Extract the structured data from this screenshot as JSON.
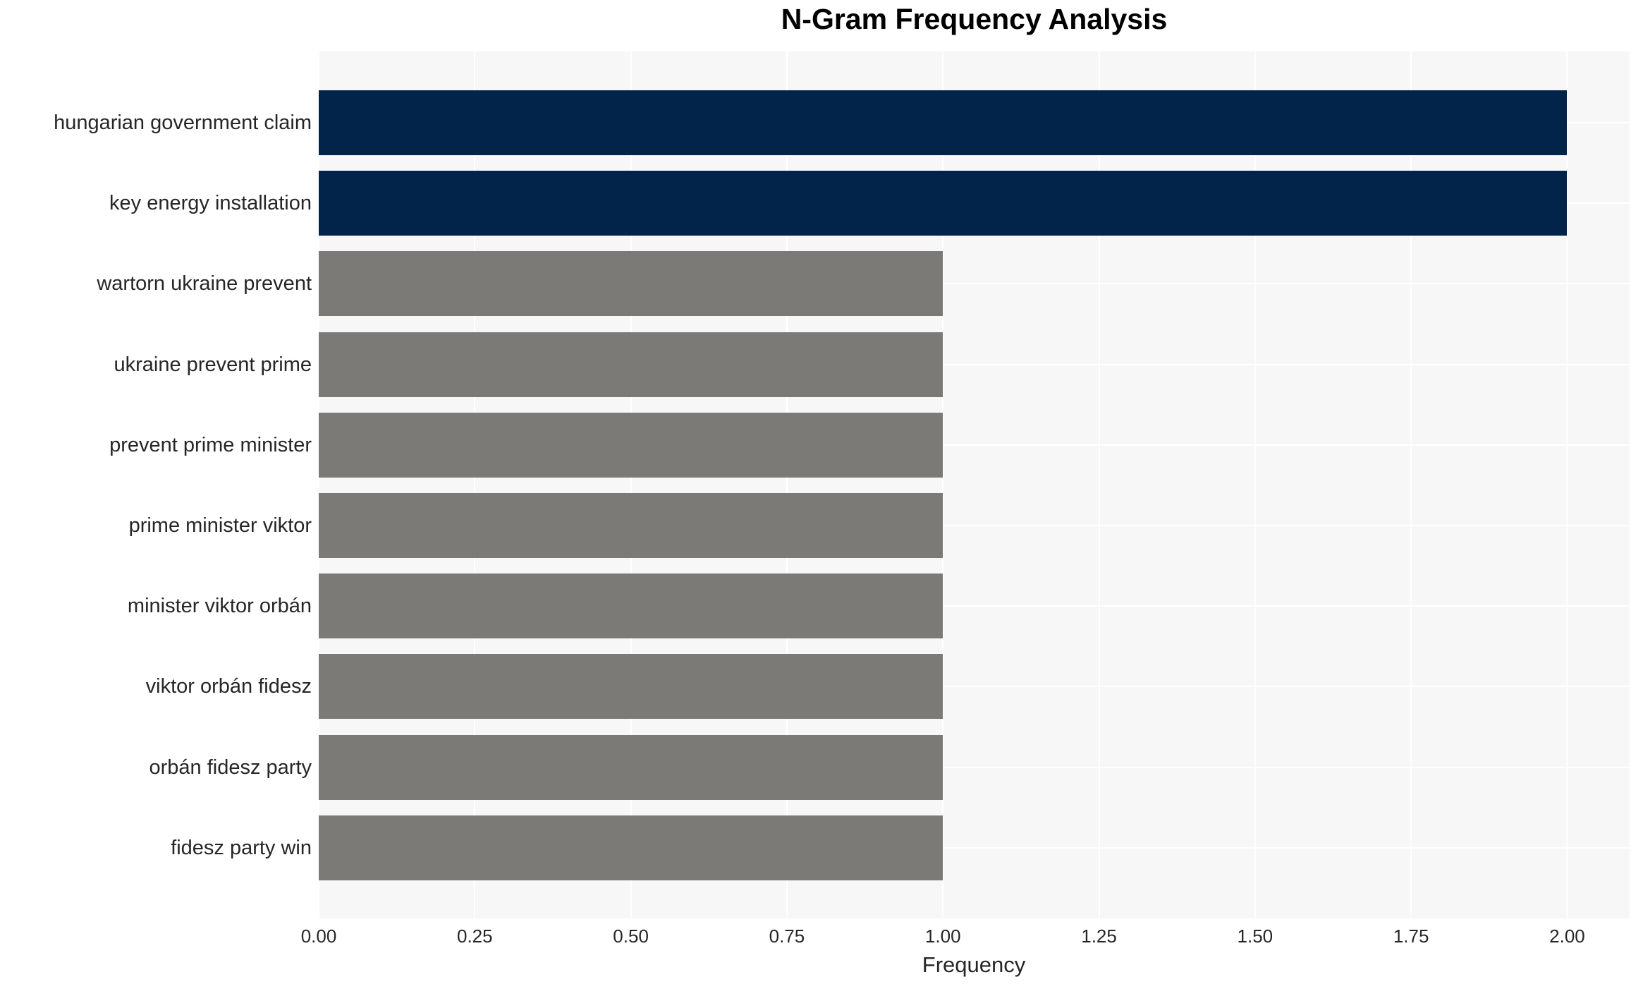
{
  "chart_data": {
    "type": "bar",
    "orientation": "horizontal",
    "title": "N-Gram Frequency Analysis",
    "xlabel": "Frequency",
    "categories": [
      "hungarian government claim",
      "key energy installation",
      "wartorn ukraine prevent",
      "ukraine prevent prime",
      "prevent prime minister",
      "prime minister viktor",
      "minister viktor orbán",
      "viktor orbán fidesz",
      "orbán fidesz party",
      "fidesz party win"
    ],
    "values": [
      2.0,
      2.0,
      1.0,
      1.0,
      1.0,
      1.0,
      1.0,
      1.0,
      1.0,
      1.0
    ],
    "bar_colors": [
      "#02244b",
      "#02244b",
      "#7b7a77",
      "#7b7a77",
      "#7b7a77",
      "#7b7a77",
      "#7b7a77",
      "#7b7a77",
      "#7b7a77",
      "#7b7a77"
    ],
    "xlim": [
      0,
      2.1
    ],
    "xticks": [
      0.0,
      0.25,
      0.5,
      0.75,
      1.0,
      1.25,
      1.5,
      1.75,
      2.0
    ],
    "xtick_labels": [
      "0.00",
      "0.25",
      "0.50",
      "0.75",
      "1.00",
      "1.25",
      "1.50",
      "1.75",
      "2.00"
    ],
    "grid": "on",
    "legend": "none",
    "colors": {
      "navy": "#02244b",
      "gray": "#7b7a77",
      "panel_background": "#f7f7f7",
      "gridline": "#ffffff",
      "tick_text": "#262626",
      "title_text": "#000000"
    }
  }
}
